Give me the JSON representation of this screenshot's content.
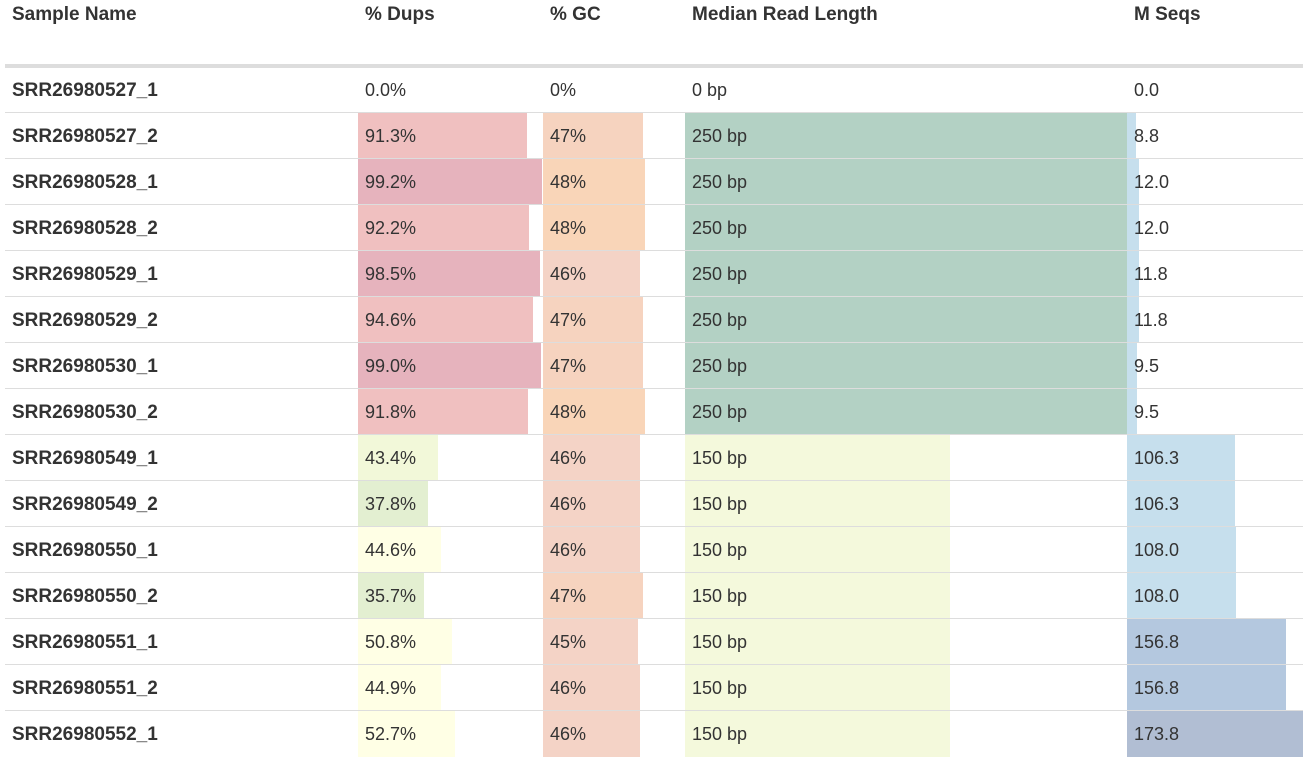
{
  "columns": [
    {
      "key": "sample",
      "label": "Sample Name"
    },
    {
      "key": "dups",
      "label": "% Dups"
    },
    {
      "key": "gc",
      "label": "% GC"
    },
    {
      "key": "len",
      "label": "Median Read Length"
    },
    {
      "key": "seqs",
      "label": "M Seqs"
    }
  ],
  "rows": [
    {
      "sample": "SRR26980527_1",
      "dups": "0.0%",
      "gc": "0%",
      "len": "0 bp",
      "seqs": "0.0",
      "dups_v": 0.0,
      "gc_v": 0,
      "len_v": 0,
      "seqs_v": 0.0
    },
    {
      "sample": "SRR26980527_2",
      "dups": "91.3%",
      "gc": "47%",
      "len": "250 bp",
      "seqs": "8.8",
      "dups_v": 91.3,
      "gc_v": 47,
      "len_v": 250,
      "seqs_v": 8.8
    },
    {
      "sample": "SRR26980528_1",
      "dups": "99.2%",
      "gc": "48%",
      "len": "250 bp",
      "seqs": "12.0",
      "dups_v": 99.2,
      "gc_v": 48,
      "len_v": 250,
      "seqs_v": 12.0
    },
    {
      "sample": "SRR26980528_2",
      "dups": "92.2%",
      "gc": "48%",
      "len": "250 bp",
      "seqs": "12.0",
      "dups_v": 92.2,
      "gc_v": 48,
      "len_v": 250,
      "seqs_v": 12.0
    },
    {
      "sample": "SRR26980529_1",
      "dups": "98.5%",
      "gc": "46%",
      "len": "250 bp",
      "seqs": "11.8",
      "dups_v": 98.5,
      "gc_v": 46,
      "len_v": 250,
      "seqs_v": 11.8
    },
    {
      "sample": "SRR26980529_2",
      "dups": "94.6%",
      "gc": "47%",
      "len": "250 bp",
      "seqs": "11.8",
      "dups_v": 94.6,
      "gc_v": 47,
      "len_v": 250,
      "seqs_v": 11.8
    },
    {
      "sample": "SRR26980530_1",
      "dups": "99.0%",
      "gc": "47%",
      "len": "250 bp",
      "seqs": "9.5",
      "dups_v": 99.0,
      "gc_v": 47,
      "len_v": 250,
      "seqs_v": 9.5
    },
    {
      "sample": "SRR26980530_2",
      "dups": "91.8%",
      "gc": "48%",
      "len": "250 bp",
      "seqs": "9.5",
      "dups_v": 91.8,
      "gc_v": 48,
      "len_v": 250,
      "seqs_v": 9.5
    },
    {
      "sample": "SRR26980549_1",
      "dups": "43.4%",
      "gc": "46%",
      "len": "150 bp",
      "seqs": "106.3",
      "dups_v": 43.4,
      "gc_v": 46,
      "len_v": 150,
      "seqs_v": 106.3
    },
    {
      "sample": "SRR26980549_2",
      "dups": "37.8%",
      "gc": "46%",
      "len": "150 bp",
      "seqs": "106.3",
      "dups_v": 37.8,
      "gc_v": 46,
      "len_v": 150,
      "seqs_v": 106.3
    },
    {
      "sample": "SRR26980550_1",
      "dups": "44.6%",
      "gc": "46%",
      "len": "150 bp",
      "seqs": "108.0",
      "dups_v": 44.6,
      "gc_v": 46,
      "len_v": 150,
      "seqs_v": 108.0
    },
    {
      "sample": "SRR26980550_2",
      "dups": "35.7%",
      "gc": "47%",
      "len": "150 bp",
      "seqs": "108.0",
      "dups_v": 35.7,
      "gc_v": 47,
      "len_v": 150,
      "seqs_v": 108.0
    },
    {
      "sample": "SRR26980551_1",
      "dups": "50.8%",
      "gc": "45%",
      "len": "150 bp",
      "seqs": "156.8",
      "dups_v": 50.8,
      "gc_v": 45,
      "len_v": 150,
      "seqs_v": 156.8
    },
    {
      "sample": "SRR26980551_2",
      "dups": "44.9%",
      "gc": "46%",
      "len": "150 bp",
      "seqs": "156.8",
      "dups_v": 44.9,
      "gc_v": 46,
      "len_v": 150,
      "seqs_v": 156.8
    },
    {
      "sample": "SRR26980552_1",
      "dups": "52.7%",
      "gc": "46%",
      "len": "150 bp",
      "seqs": "173.8",
      "dups_v": 52.7,
      "gc_v": 46,
      "len_v": 150,
      "seqs_v": 173.8
    }
  ],
  "scales": {
    "dups_max": 100,
    "gc_max": 67,
    "len_max": 250,
    "seqs_max": 173.8
  },
  "colors": {
    "dups": [
      "#ffffe5",
      "#f2f8d9",
      "#e3efd1",
      "#f0c0c0",
      "#e6b3bd"
    ],
    "gc": [
      "#f4d3c6",
      "#f6d3bf",
      "#f9d5b8"
    ],
    "len_long": "#b3d1c4",
    "len_short": "#f4f9dc",
    "seqs_low": "#c6dfed",
    "seqs_mid": "#b4c8df",
    "seqs_high": "#b1bed3"
  }
}
